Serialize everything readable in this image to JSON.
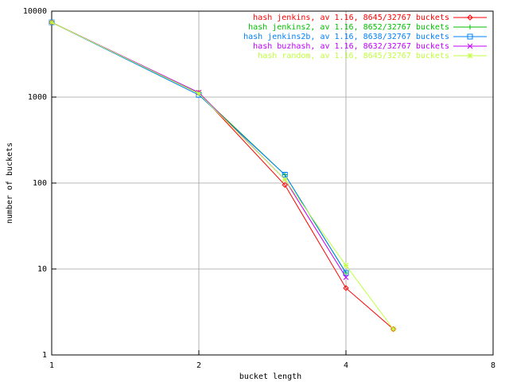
{
  "chart_data": {
    "type": "line",
    "x_label": "bucket length",
    "y_label": "number of buckets",
    "x": [
      1,
      2,
      3,
      4,
      5
    ],
    "xlim": [
      1,
      8
    ],
    "ylim": [
      1,
      10000
    ],
    "xticks": [
      1,
      2,
      4,
      8
    ],
    "yticks": [
      1,
      10,
      100,
      1000,
      10000
    ],
    "xscale": "log",
    "yscale": "log",
    "grid": true,
    "legend": "top-right",
    "series": [
      {
        "name": "hash jenkins, av 1.16, 8645/32767 buckets",
        "color": "#ff0000",
        "marker": "diamond",
        "values": [
          7400,
          1120,
          95,
          6,
          2
        ]
      },
      {
        "name": "hash jenkins2, av 1.16, 8652/32767 buckets",
        "color": "#00c000",
        "marker": "plus",
        "values": [
          7400,
          1100,
          125,
          9,
          null
        ]
      },
      {
        "name": "hash jenkins2b, av 1.16, 8638/32767 buckets",
        "color": "#0080ff",
        "marker": "box",
        "values": [
          7400,
          1060,
          125,
          9,
          null
        ]
      },
      {
        "name": "hash buzhash, av 1.16, 8632/32767 buckets",
        "color": "#c000ff",
        "marker": "cross",
        "values": [
          7400,
          1130,
          110,
          8,
          null
        ]
      },
      {
        "name": "hash random, av 1.16, 8645/32767 buckets",
        "color": "#c0ff40",
        "marker": "star",
        "values": [
          7400,
          1100,
          110,
          11,
          2
        ]
      }
    ]
  }
}
